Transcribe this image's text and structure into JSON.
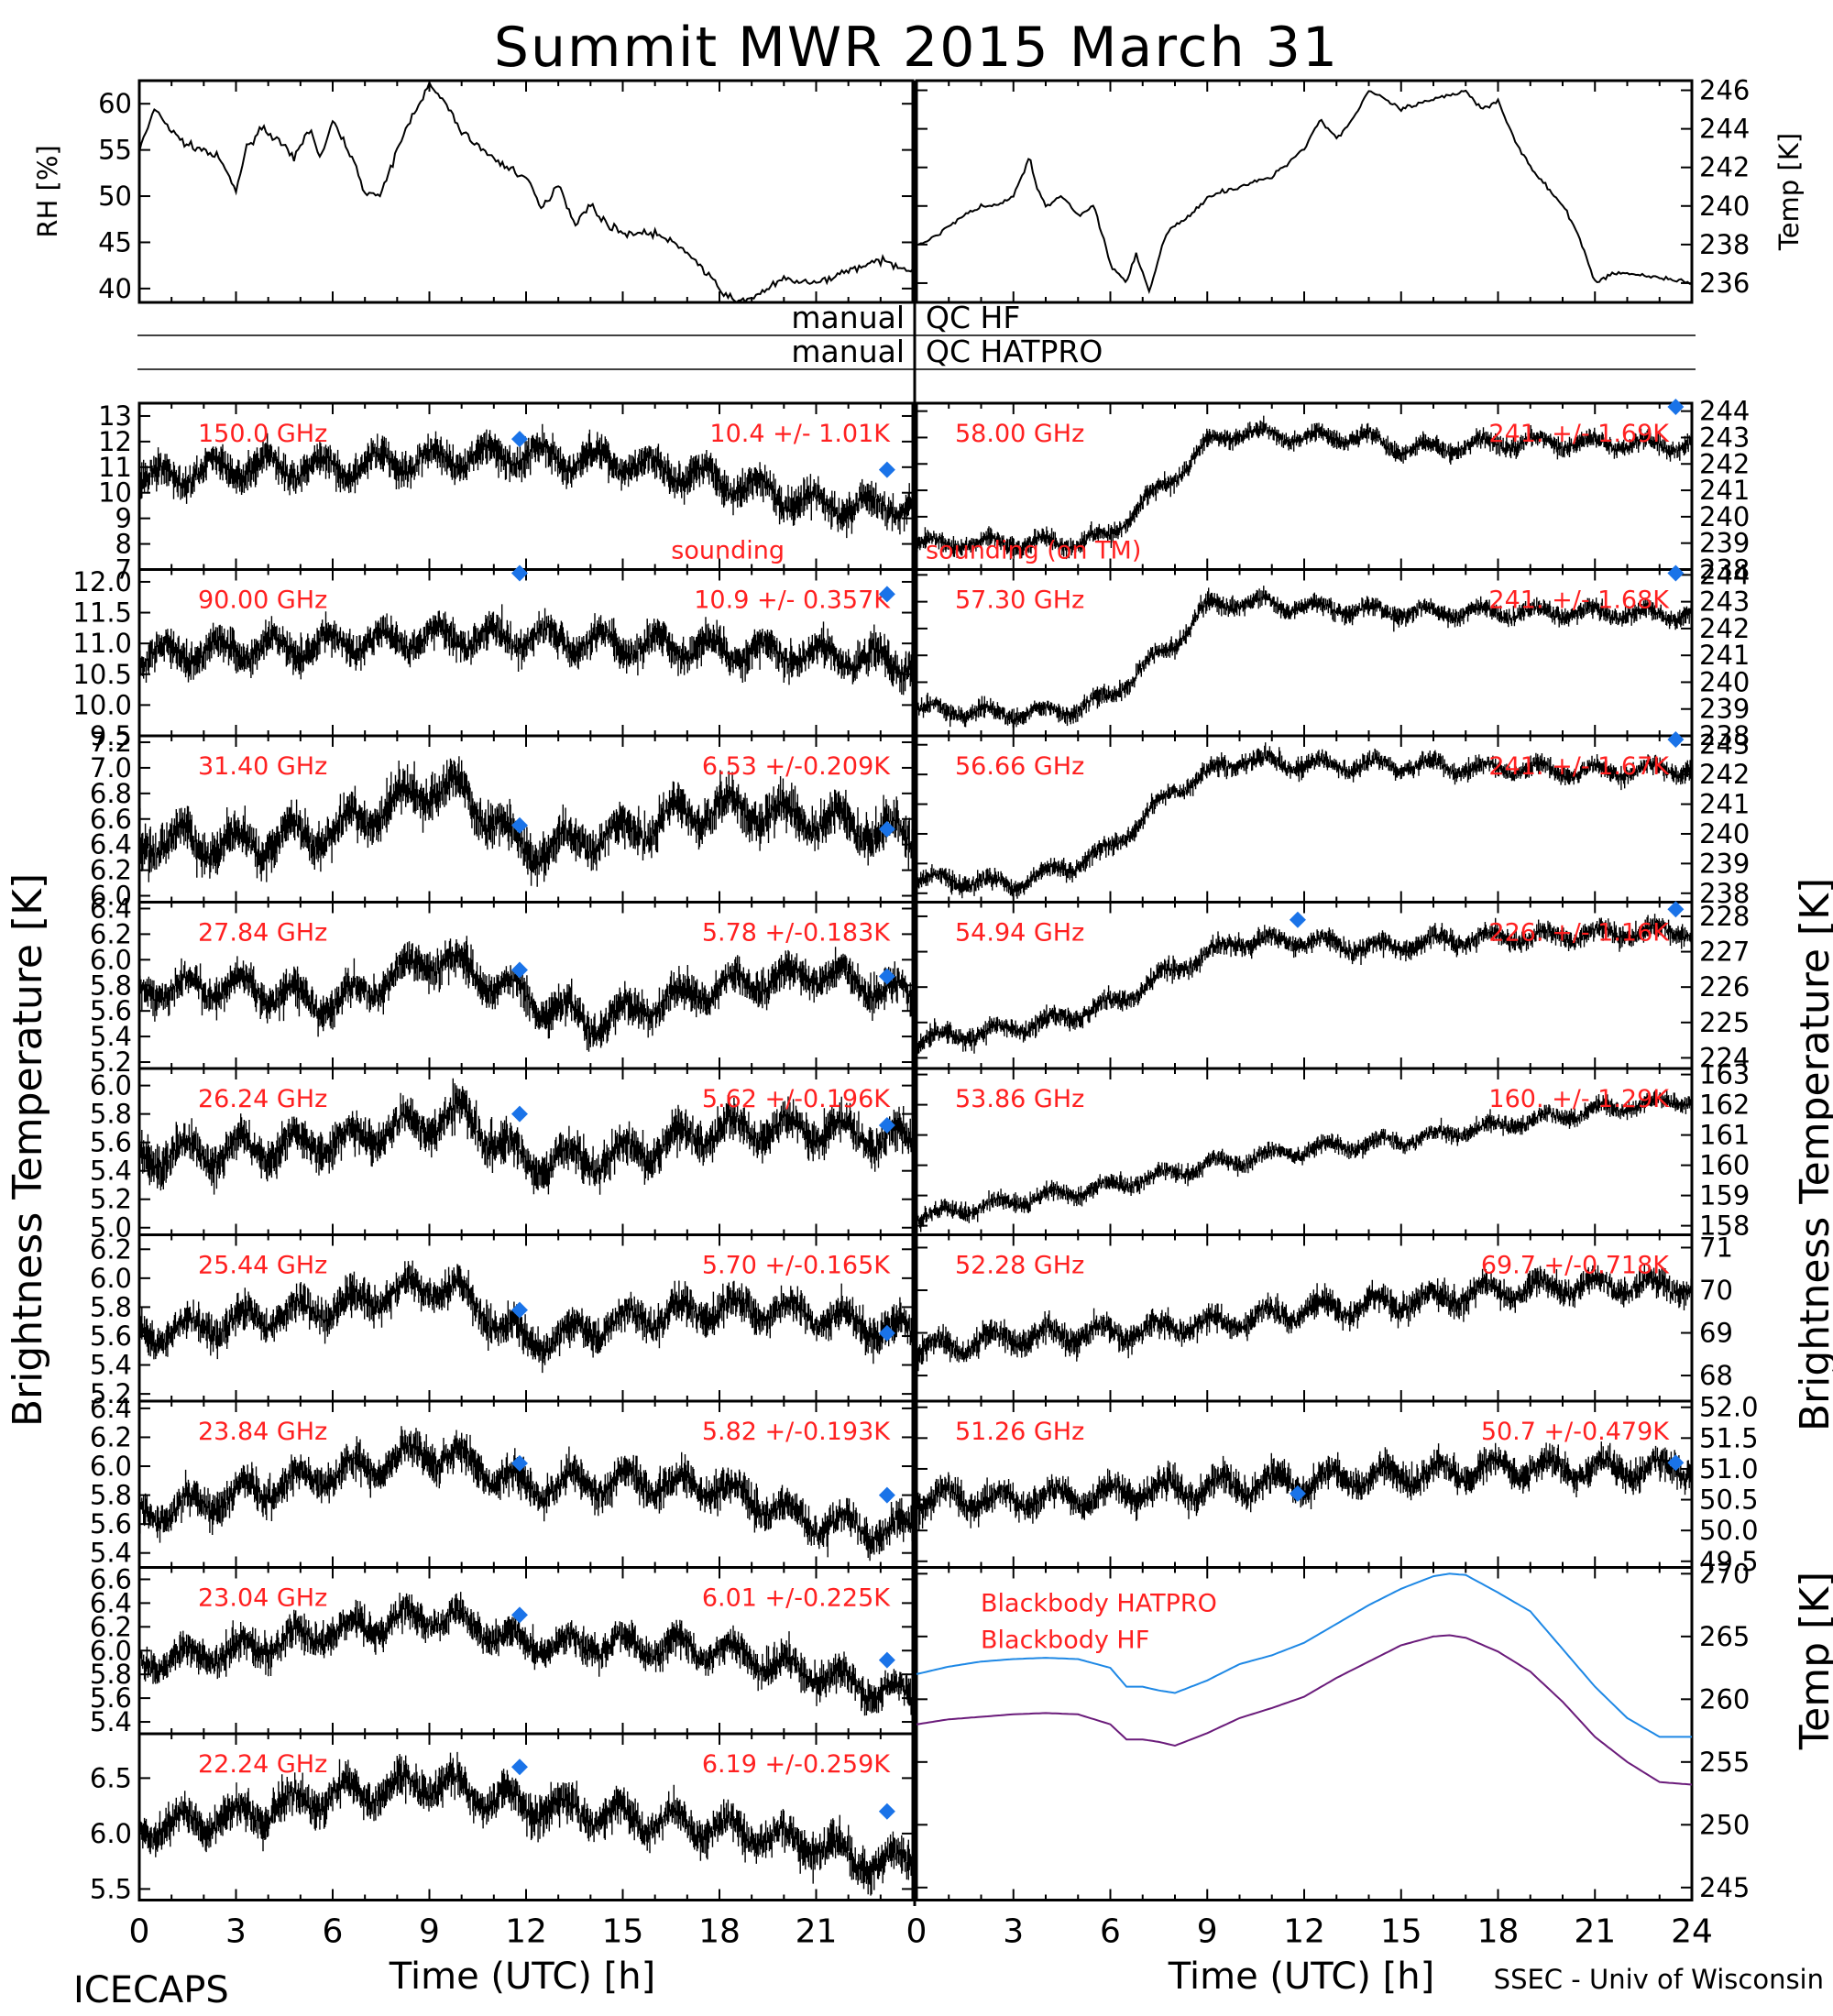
{
  "title": "Summit MWR 2015 March 31",
  "footer_left": "ICECAPS",
  "footer_right": "SSEC - Univ of Wisconsin",
  "colors": {
    "data": "#000000",
    "label": "#ff2020",
    "sounding": "#1a73e8",
    "bb_hatpro": "#1e88e5",
    "bb_hf": "#6a1b7a"
  },
  "qc": {
    "hf_left": "manual",
    "hf_right": "QC HF",
    "hatpro_left": "manual",
    "hatpro_right": "QC HATPRO"
  },
  "chart_data": [
    {
      "id": "rh",
      "type": "line",
      "ylabel": "RH [%]",
      "yticks": [
        "40",
        "45",
        "50",
        "55",
        "60"
      ],
      "ylim": [
        38.5,
        62.5
      ],
      "xlim": [
        0,
        24
      ],
      "x": [
        0,
        0.5,
        1,
        1.5,
        2,
        2.5,
        3,
        3.3,
        3.8,
        4.3,
        4.8,
        5.3,
        5.6,
        6,
        6.5,
        7,
        7.5,
        8,
        8.5,
        9,
        9.5,
        10,
        11,
        12,
        12.5,
        13,
        13.5,
        14,
        14.5,
        15,
        16,
        17,
        18,
        18.5,
        19,
        20,
        21,
        22,
        23,
        24
      ],
      "y": [
        55,
        59.5,
        57,
        55.5,
        55,
        54,
        50.5,
        55,
        57.5,
        56,
        54,
        57.5,
        54,
        58,
        55,
        50.5,
        50,
        55,
        59,
        62,
        60,
        57,
        54,
        52,
        48.5,
        51.5,
        47,
        49,
        47,
        46,
        46,
        44,
        40,
        38.5,
        39,
        41,
        40.5,
        42,
        43,
        42
      ]
    },
    {
      "id": "temp",
      "type": "line",
      "ylabel": "Temp [K]",
      "yticks": [
        "236",
        "238",
        "240",
        "242",
        "244",
        "246"
      ],
      "ylim": [
        235,
        246.5
      ],
      "xlim": [
        0,
        24
      ],
      "x": [
        0,
        0.5,
        1,
        1.5,
        2,
        2.5,
        3,
        3.5,
        3.7,
        4,
        4.5,
        5,
        5.5,
        6,
        6.5,
        6.8,
        7.2,
        7.7,
        8,
        8.5,
        9,
        10,
        11,
        12,
        12.5,
        13,
        13.5,
        14,
        14.5,
        15,
        16,
        17,
        17.5,
        18,
        18.5,
        19,
        20,
        20.5,
        21,
        21.5,
        22,
        23,
        24
      ],
      "y": [
        238,
        238.3,
        239,
        239.5,
        240,
        240,
        240.5,
        242.5,
        241,
        240,
        240.5,
        239.5,
        240,
        237,
        236,
        237.5,
        235.5,
        238.5,
        239,
        239.5,
        240.5,
        241,
        241.5,
        243,
        244.5,
        243.5,
        244.5,
        246,
        245.5,
        245,
        245.5,
        246,
        245,
        245.5,
        243.5,
        242,
        240,
        238.5,
        236,
        236.5,
        236.5,
        236.3,
        236
      ]
    },
    {
      "id": "hf150",
      "type": "scatter",
      "freq": "150.0 GHz",
      "stat": "10.4 +/- 1.01K",
      "yticks": [
        "7",
        "8",
        "9",
        "10",
        "11",
        "12",
        "13"
      ],
      "ylim": [
        7,
        13.5
      ],
      "x": [
        0,
        3,
        6,
        9,
        12,
        15,
        18,
        21,
        24
      ],
      "y": [
        10.5,
        11,
        11,
        11.3,
        11.5,
        11.2,
        10.5,
        9.5,
        9.5
      ],
      "noise": 1.2,
      "sounding": [
        {
          "x": 11.8,
          "y": 12.1
        },
        {
          "x": 23.2,
          "y": 10.9
        }
      ],
      "sounding_label": "sounding"
    },
    {
      "id": "hf90",
      "type": "scatter",
      "freq": "90.00 GHz",
      "stat": "10.9 +/- 0.357K",
      "yticks": [
        "9.5",
        "10.0",
        "10.5",
        "11.0",
        "11.5",
        "12.0"
      ],
      "ylim": [
        9.5,
        12.2
      ],
      "x": [
        0,
        3,
        6,
        9,
        12,
        15,
        18,
        21,
        24
      ],
      "y": [
        10.8,
        10.9,
        11,
        11.1,
        11.1,
        11,
        10.9,
        10.8,
        10.7
      ],
      "noise": 0.5,
      "sounding": [
        {
          "x": 11.8,
          "y": 12.4
        },
        {
          "x": 23.2,
          "y": 11.8
        }
      ]
    },
    {
      "id": "k314",
      "type": "scatter",
      "freq": "31.40 GHz",
      "stat": "6.53 +/-0.209K",
      "yticks": [
        "6.0",
        "6.2",
        "6.4",
        "6.6",
        "6.8",
        "7.0",
        "7.2"
      ],
      "ylim": [
        5.95,
        7.25
      ],
      "x": [
        0,
        3,
        6,
        9,
        10,
        12,
        15,
        18,
        21,
        24
      ],
      "y": [
        6.45,
        6.4,
        6.5,
        6.85,
        6.8,
        6.35,
        6.5,
        6.7,
        6.6,
        6.45
      ],
      "noise": 0.3,
      "sounding": [
        {
          "x": 11.8,
          "y": 6.55
        },
        {
          "x": 23.2,
          "y": 6.52
        }
      ]
    },
    {
      "id": "k2784",
      "type": "scatter",
      "freq": "27.84 GHz",
      "stat": "5.78 +/-0.183K",
      "yticks": [
        "5.2",
        "5.4",
        "5.6",
        "5.8",
        "6.0",
        "6.2",
        "6.4"
      ],
      "ylim": [
        5.15,
        6.45
      ],
      "x": [
        0,
        3,
        6,
        9,
        10,
        12,
        14,
        18,
        21,
        24
      ],
      "y": [
        5.75,
        5.8,
        5.65,
        6.0,
        5.95,
        5.7,
        5.5,
        5.8,
        5.9,
        5.7
      ],
      "noise": 0.25,
      "sounding": [
        {
          "x": 11.8,
          "y": 5.92
        },
        {
          "x": 23.2,
          "y": 5.87
        }
      ]
    },
    {
      "id": "k2624",
      "type": "scatter",
      "freq": "26.24 GHz",
      "stat": "5.62 +/-0.196K",
      "yticks": [
        "5.0",
        "5.2",
        "5.4",
        "5.6",
        "5.8",
        "6.0"
      ],
      "ylim": [
        4.95,
        6.12
      ],
      "x": [
        0,
        3,
        6,
        9,
        10,
        12,
        15,
        18,
        21,
        24
      ],
      "y": [
        5.5,
        5.55,
        5.6,
        5.75,
        5.8,
        5.45,
        5.5,
        5.7,
        5.7,
        5.6
      ],
      "noise": 0.25,
      "sounding": [
        {
          "x": 11.8,
          "y": 5.8
        },
        {
          "x": 23.2,
          "y": 5.72
        }
      ]
    },
    {
      "id": "k2544",
      "type": "scatter",
      "freq": "25.44 GHz",
      "stat": "5.70 +/-0.165K",
      "yticks": [
        "5.2",
        "5.4",
        "5.6",
        "5.8",
        "6.0",
        "6.2"
      ],
      "ylim": [
        5.15,
        6.3
      ],
      "x": [
        0,
        3,
        6,
        9,
        10,
        12,
        15,
        18,
        21,
        24
      ],
      "y": [
        5.6,
        5.7,
        5.8,
        5.95,
        5.9,
        5.55,
        5.7,
        5.8,
        5.75,
        5.6
      ],
      "noise": 0.22,
      "sounding": [
        {
          "x": 11.8,
          "y": 5.78
        },
        {
          "x": 23.2,
          "y": 5.62
        }
      ]
    },
    {
      "id": "k2384",
      "type": "scatter",
      "freq": "23.84 GHz",
      "stat": "5.82 +/-0.193K",
      "yticks": [
        "5.4",
        "5.6",
        "5.8",
        "6.0",
        "6.2",
        "6.4"
      ],
      "ylim": [
        5.3,
        6.45
      ],
      "x": [
        0,
        3,
        6,
        9,
        10,
        12,
        15,
        18,
        21,
        24
      ],
      "y": [
        5.65,
        5.8,
        5.95,
        6.1,
        6.05,
        5.85,
        5.9,
        5.85,
        5.6,
        5.55
      ],
      "noise": 0.22,
      "sounding": [
        {
          "x": 11.8,
          "y": 6.02
        },
        {
          "x": 23.2,
          "y": 5.8
        }
      ]
    },
    {
      "id": "k2304",
      "type": "scatter",
      "freq": "23.04 GHz",
      "stat": "6.01 +/-0.225K",
      "yticks": [
        "5.4",
        "5.6",
        "5.8",
        "6.0",
        "6.2",
        "6.4",
        "6.6"
      ],
      "ylim": [
        5.3,
        6.7
      ],
      "x": [
        0,
        3,
        6,
        9,
        10,
        12,
        15,
        18,
        21,
        24
      ],
      "y": [
        5.9,
        6.0,
        6.15,
        6.3,
        6.25,
        6.05,
        6.05,
        6.0,
        5.8,
        5.6
      ],
      "noise": 0.25,
      "sounding": [
        {
          "x": 11.8,
          "y": 6.3
        },
        {
          "x": 23.2,
          "y": 5.92
        }
      ]
    },
    {
      "id": "k2224",
      "type": "scatter",
      "freq": "22.24 GHz",
      "stat": "6.19 +/-0.259K",
      "yticks": [
        "5.5",
        "6.0",
        "6.5"
      ],
      "ylim": [
        5.4,
        6.9
      ],
      "x": [
        0,
        3,
        6,
        9,
        10,
        12,
        15,
        18,
        21,
        23,
        24
      ],
      "y": [
        6.05,
        6.15,
        6.35,
        6.45,
        6.4,
        6.25,
        6.15,
        6.05,
        5.9,
        5.7,
        5.75
      ],
      "noise": 0.3,
      "sounding": [
        {
          "x": 11.8,
          "y": 6.6
        },
        {
          "x": 23.2,
          "y": 6.2
        }
      ]
    },
    {
      "id": "v5800",
      "type": "scatter",
      "freq": "58.00 GHz",
      "stat": "241. +/- 1.69K",
      "yticks": [
        "238",
        "239",
        "240",
        "241",
        "242",
        "243",
        "244"
      ],
      "ylim": [
        238,
        244.3
      ],
      "x": [
        0,
        3,
        5,
        6,
        7,
        8,
        9,
        10,
        12,
        14,
        15,
        18,
        21,
        24
      ],
      "y": [
        239,
        239,
        239,
        239.3,
        240.5,
        241.5,
        242.8,
        243.2,
        243,
        243,
        242.5,
        242.8,
        242.8,
        242.7
      ],
      "noise": 0.6,
      "sounding": [
        {
          "x": 23.5,
          "y": 244.3
        }
      ],
      "sounding_label": "sounding (on TM)"
    },
    {
      "id": "v5730",
      "type": "scatter",
      "freq": "57.30 GHz",
      "stat": "241. +/- 1.68K",
      "yticks": [
        "238",
        "239",
        "240",
        "241",
        "242",
        "243",
        "244"
      ],
      "ylim": [
        238,
        244.2
      ],
      "x": [
        0,
        3,
        5,
        6,
        7,
        8,
        9,
        10,
        12,
        15,
        18,
        21,
        24
      ],
      "y": [
        239,
        238.8,
        239,
        239.5,
        240.5,
        241.5,
        242.8,
        243,
        242.8,
        242.6,
        242.6,
        242.6,
        242.5
      ],
      "noise": 0.6,
      "sounding": [
        {
          "x": 23.5,
          "y": 244.2
        }
      ]
    },
    {
      "id": "v5666",
      "type": "scatter",
      "freq": "56.66 GHz",
      "stat": "241. +/- 1.67K",
      "yticks": [
        "238",
        "239",
        "240",
        "241",
        "242",
        "243"
      ],
      "ylim": [
        237.7,
        243.3
      ],
      "x": [
        0,
        3,
        5,
        6,
        7,
        8,
        9,
        10,
        12,
        15,
        18,
        21,
        24
      ],
      "y": [
        238.5,
        238.3,
        239,
        239.5,
        240.5,
        241.5,
        242,
        242.5,
        242.3,
        242.3,
        242.2,
        242.1,
        242.2
      ],
      "noise": 0.55,
      "sounding": [
        {
          "x": 23.5,
          "y": 243.3
        }
      ]
    },
    {
      "id": "v5494",
      "type": "scatter",
      "freq": "54.94 GHz",
      "stat": "226. +/- 1.16K",
      "yticks": [
        "224",
        "225",
        "226",
        "227",
        "228"
      ],
      "ylim": [
        223.7,
        228.4
      ],
      "x": [
        0,
        2,
        4,
        6,
        8,
        10,
        12,
        14,
        16,
        18,
        21,
        24
      ],
      "y": [
        224.5,
        224.7,
        225,
        225.5,
        226.5,
        227.3,
        227.3,
        227.1,
        227.3,
        227.4,
        227.5,
        227.6
      ],
      "noise": 0.5,
      "sounding": [
        {
          "x": 11.8,
          "y": 227.9
        },
        {
          "x": 23.5,
          "y": 228.2
        }
      ]
    },
    {
      "id": "v5386",
      "type": "scatter",
      "freq": "53.86 GHz",
      "stat": "160. +/- 1.29K",
      "yticks": [
        "158",
        "159",
        "160",
        "161",
        "162",
        "163"
      ],
      "ylim": [
        157.7,
        163.2
      ],
      "x": [
        0,
        3,
        6,
        9,
        12,
        15,
        18,
        21,
        24
      ],
      "y": [
        158.3,
        158.8,
        159.3,
        160,
        160.5,
        160.8,
        161.3,
        161.8,
        162.2
      ],
      "noise": 0.5,
      "sounding": []
    },
    {
      "id": "v5228",
      "type": "scatter",
      "freq": "52.28 GHz",
      "stat": "69.7 +/-0.718K",
      "yticks": [
        "68",
        "69",
        "70",
        "71"
      ],
      "ylim": [
        67.4,
        71.3
      ],
      "x": [
        0,
        3,
        6,
        9,
        12,
        15,
        18,
        21,
        24
      ],
      "y": [
        68.6,
        68.9,
        69,
        69.2,
        69.5,
        69.7,
        70,
        70.1,
        70.1
      ],
      "noise": 0.55,
      "sounding": []
    },
    {
      "id": "v5126",
      "type": "scatter",
      "freq": "51.26 GHz",
      "stat": "50.7 +/-0.479K",
      "yticks": [
        "49.5",
        "50.0",
        "50.5",
        "51.0",
        "51.5",
        "52.0"
      ],
      "ylim": [
        49.4,
        52.1
      ],
      "x": [
        0,
        3,
        6,
        9,
        12,
        15,
        18,
        21,
        24
      ],
      "y": [
        50.5,
        50.5,
        50.6,
        50.7,
        50.8,
        50.9,
        51,
        51,
        51
      ],
      "noise": 0.45,
      "sounding": [
        {
          "x": 11.8,
          "y": 50.6
        },
        {
          "x": 23.5,
          "y": 51.1
        }
      ]
    },
    {
      "id": "bb",
      "type": "line",
      "ylabel": "Temp [K]",
      "yticks": [
        "245",
        "250",
        "255",
        "260",
        "265",
        "270"
      ],
      "ylim": [
        244,
        270.5
      ],
      "xlim": [
        0,
        24
      ],
      "series": [
        {
          "name": "Blackbody HATPRO",
          "x": [
            0,
            1,
            2,
            3,
            4,
            5,
            6,
            6.5,
            7,
            7.5,
            8,
            9,
            10,
            11,
            12,
            13,
            14,
            15,
            16,
            16.5,
            17,
            18,
            19,
            20,
            21,
            22,
            23,
            24
          ],
          "y": [
            262,
            262.6,
            263,
            263.2,
            263.3,
            263.2,
            262.5,
            261,
            261,
            260.7,
            260.5,
            261.5,
            262.8,
            263.5,
            264.5,
            266,
            267.5,
            268.8,
            269.8,
            270,
            269.9,
            268.5,
            267,
            264,
            261,
            258.5,
            257,
            257
          ]
        },
        {
          "name": "Blackbody HF",
          "x": [
            0,
            1,
            2,
            3,
            4,
            5,
            6,
            6.5,
            7,
            7.5,
            8,
            9,
            10,
            11,
            12,
            13,
            14,
            15,
            16,
            16.5,
            17,
            18,
            19,
            20,
            21,
            22,
            23,
            24
          ],
          "y": [
            258,
            258.4,
            258.6,
            258.8,
            258.9,
            258.8,
            258,
            256.8,
            256.8,
            256.6,
            256.3,
            257.3,
            258.5,
            259.3,
            260.2,
            261.7,
            263,
            264.3,
            265,
            265.1,
            264.9,
            263.8,
            262.2,
            259.8,
            257,
            255,
            253.4,
            253.2
          ]
        }
      ]
    }
  ],
  "axes": {
    "left_ylabel": "Brightness Temperature [K]",
    "right_ylabel": "Brightness Temperature [K]",
    "xticks": [
      "0",
      "3",
      "6",
      "9",
      "12",
      "15",
      "18",
      "21"
    ],
    "xticks_right": [
      "0",
      "3",
      "6",
      "9",
      "12",
      "15",
      "18",
      "21",
      "24"
    ],
    "xlabel": "Time (UTC) [h]"
  }
}
